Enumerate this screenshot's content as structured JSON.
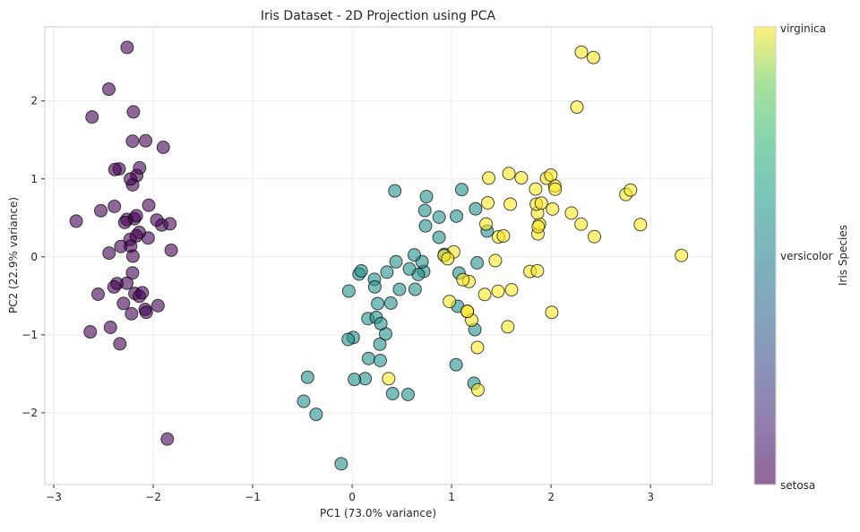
{
  "chart_data": {
    "type": "scatter",
    "title": "Iris Dataset - 2D Projection using PCA",
    "xlabel": "PC1 (73.0% variance)",
    "ylabel": "PC2 (22.9% variance)",
    "xlim": [
      -3.09,
      3.62
    ],
    "ylim": [
      -2.92,
      2.95
    ],
    "xticks": [
      -3,
      -2,
      -1,
      0,
      1,
      2,
      3
    ],
    "yticks": [
      -2,
      -1,
      0,
      1,
      2
    ],
    "grid": true,
    "colormap": "viridis",
    "marker_alpha": 0.6,
    "marker_edge_color": "#000000",
    "colorbar": {
      "label": "Iris Species",
      "ticks": [
        "setosa",
        "versicolor",
        "virginica"
      ],
      "colors": [
        "#440154",
        "#21918c",
        "#fde725"
      ]
    },
    "series": [
      {
        "name": "setosa",
        "color": "#440154",
        "points": [
          [
            -2.265,
            0.48
          ],
          [
            -2.081,
            -0.674
          ],
          [
            -2.364,
            -0.342
          ],
          [
            -2.299,
            -0.597
          ],
          [
            -2.39,
            0.647
          ],
          [
            -2.076,
            1.489
          ],
          [
            -2.444,
            0.048
          ],
          [
            -2.233,
            0.223
          ],
          [
            -2.335,
            -1.115
          ],
          [
            -2.184,
            -0.469
          ],
          [
            -2.166,
            1.044
          ],
          [
            -2.326,
            0.133
          ],
          [
            -2.218,
            -0.729
          ],
          [
            -2.633,
            -0.962
          ],
          [
            -2.199,
            1.86
          ],
          [
            -2.262,
            2.686
          ],
          [
            -2.208,
            1.484
          ],
          [
            -2.19,
            0.489
          ],
          [
            -1.899,
            1.405
          ],
          [
            -2.343,
            1.128
          ],
          [
            -1.914,
            0.409
          ],
          [
            -2.207,
            0.924
          ],
          [
            -2.774,
            0.458
          ],
          [
            -1.819,
            0.086
          ],
          [
            -2.227,
            0.137
          ],
          [
            -1.952,
            -0.626
          ],
          [
            -2.051,
            0.242
          ],
          [
            -2.169,
            0.527
          ],
          [
            -2.14,
            0.313
          ],
          [
            -2.265,
            -0.338
          ],
          [
            -2.14,
            -0.505
          ],
          [
            -1.832,
            0.424
          ],
          [
            -2.615,
            1.794
          ],
          [
            -2.446,
            2.151
          ],
          [
            -2.11,
            -0.46
          ],
          [
            -2.208,
            -0.206
          ],
          [
            -2.045,
            0.662
          ],
          [
            -2.527,
            0.592
          ],
          [
            -2.43,
            -0.904
          ],
          [
            -2.17,
            0.269
          ],
          [
            -2.286,
            0.442
          ],
          [
            -1.858,
            -2.337
          ],
          [
            -2.554,
            -0.479
          ],
          [
            -1.964,
            0.472
          ],
          [
            -2.137,
            1.142
          ],
          [
            -2.07,
            -0.711
          ],
          [
            -2.385,
            1.12
          ],
          [
            -2.394,
            -0.386
          ],
          [
            -2.229,
            0.998
          ],
          [
            -2.204,
            0.009
          ]
        ]
      },
      {
        "name": "versicolor",
        "color": "#21918c",
        "points": [
          [
            1.102,
            0.863
          ],
          [
            0.731,
            0.595
          ],
          [
            1.241,
            0.616
          ],
          [
            0.407,
            -1.754
          ],
          [
            1.075,
            -0.208
          ],
          [
            0.389,
            -0.593
          ],
          [
            0.747,
            0.773
          ],
          [
            -0.487,
            -1.852
          ],
          [
            0.928,
            0.032
          ],
          [
            0.011,
            -1.034
          ],
          [
            -0.11,
            -2.654
          ],
          [
            0.441,
            -0.063
          ],
          [
            0.562,
            -1.765
          ],
          [
            0.72,
            -0.186
          ],
          [
            -0.033,
            -0.439
          ],
          [
            0.875,
            0.509
          ],
          [
            0.35,
            -0.196
          ],
          [
            0.159,
            -0.792
          ],
          [
            1.225,
            -1.622
          ],
          [
            0.165,
            -1.303
          ],
          [
            0.738,
            0.397
          ],
          [
            0.476,
            -0.417
          ],
          [
            1.234,
            -0.933
          ],
          [
            0.633,
            -0.416
          ],
          [
            0.703,
            -0.063
          ],
          [
            0.874,
            0.251
          ],
          [
            1.257,
            -0.077
          ],
          [
            1.358,
            0.331
          ],
          [
            0.665,
            -0.226
          ],
          [
            -0.04,
            -1.059
          ],
          [
            0.131,
            -1.562
          ],
          [
            0.023,
            -1.572
          ],
          [
            0.242,
            -0.777
          ],
          [
            1.061,
            -0.634
          ],
          [
            0.224,
            -0.288
          ],
          [
            0.429,
            0.846
          ],
          [
            1.049,
            0.522
          ],
          [
            1.045,
            -1.383
          ],
          [
            0.07,
            -0.22
          ],
          [
            0.283,
            -1.329
          ],
          [
            0.279,
            -1.12
          ],
          [
            0.625,
            0.025
          ],
          [
            0.337,
            -0.988
          ],
          [
            -0.362,
            -2.019
          ],
          [
            0.289,
            -0.856
          ],
          [
            0.091,
            -0.181
          ],
          [
            0.228,
            -0.385
          ],
          [
            0.576,
            -0.155
          ],
          [
            -0.448,
            -1.544
          ],
          [
            0.257,
            -0.599
          ]
        ]
      },
      {
        "name": "virginica",
        "color": "#fde725",
        "points": [
          [
            1.845,
            0.87
          ],
          [
            1.158,
            -0.699
          ],
          [
            2.205,
            0.562
          ],
          [
            1.44,
            -0.047
          ],
          [
            1.868,
            0.295
          ],
          [
            2.752,
            0.8
          ],
          [
            0.367,
            -1.562
          ],
          [
            2.302,
            0.42
          ],
          [
            2.007,
            -0.711
          ],
          [
            2.26,
            1.921
          ],
          [
            1.364,
            0.693
          ],
          [
            1.603,
            -0.422
          ],
          [
            1.884,
            0.419
          ],
          [
            1.26,
            -1.162
          ],
          [
            1.468,
            -0.442
          ],
          [
            1.59,
            0.676
          ],
          [
            1.471,
            0.256
          ],
          [
            2.426,
            2.557
          ],
          [
            3.311,
            0.018
          ],
          [
            1.264,
            -1.707
          ],
          [
            2.038,
            0.91
          ],
          [
            0.978,
            -0.572
          ],
          [
            2.898,
            0.414
          ],
          [
            1.333,
            -0.482
          ],
          [
            1.701,
            1.014
          ],
          [
            1.954,
            1.008
          ],
          [
            1.175,
            -0.316
          ],
          [
            1.021,
            0.064
          ],
          [
            1.788,
            -0.187
          ],
          [
            1.864,
            0.562
          ],
          [
            2.436,
            0.259
          ],
          [
            2.305,
            2.626
          ],
          [
            1.863,
            -0.179
          ],
          [
            1.114,
            -0.293
          ],
          [
            1.202,
            -0.811
          ],
          [
            2.799,
            0.857
          ],
          [
            1.576,
            1.069
          ],
          [
            1.346,
            0.422
          ],
          [
            0.925,
            0.017
          ],
          [
            1.852,
            0.676
          ],
          [
            2.015,
            0.614
          ],
          [
            1.902,
            0.69
          ],
          [
            1.158,
            -0.699
          ],
          [
            2.041,
            0.868
          ],
          [
            1.998,
            1.049
          ],
          [
            1.871,
            0.387
          ],
          [
            1.565,
            -0.897
          ],
          [
            1.521,
            0.269
          ],
          [
            1.373,
            1.011
          ],
          [
            0.961,
            -0.024
          ]
        ]
      }
    ]
  }
}
